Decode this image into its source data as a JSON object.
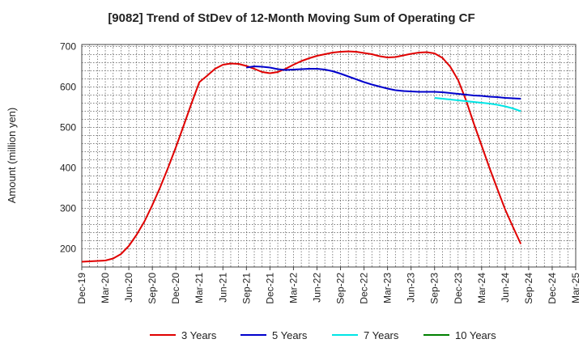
{
  "chart_data": {
    "type": "line",
    "title": "[9082]  Trend of StDev of 12-Month Moving Sum of Operating CF",
    "xlabel": "",
    "ylabel": "Amount (million yen)",
    "ylim": [
      155,
      705
    ],
    "yticks": [
      200,
      300,
      400,
      500,
      600,
      700
    ],
    "grid": true,
    "legend_position": "bottom",
    "x_dates": [
      "Dec-19",
      "Mar-20",
      "Jun-20",
      "Sep-20",
      "Dec-20",
      "Mar-21",
      "Jun-21",
      "Sep-21",
      "Dec-21",
      "Mar-22",
      "Jun-22",
      "Sep-22",
      "Dec-22",
      "Mar-23",
      "Jun-23",
      "Sep-23",
      "Dec-23",
      "Mar-24",
      "Jun-24",
      "Sep-24",
      "Dec-24",
      "Mar-25"
    ],
    "series": [
      {
        "name": "3 Years",
        "color": "#e00000",
        "points": [
          [
            "Dec-19",
            168
          ],
          [
            "Jan-20",
            169
          ],
          [
            "Feb-20",
            170
          ],
          [
            "Mar-20",
            171
          ],
          [
            "Apr-20",
            176
          ],
          [
            "May-20",
            187
          ],
          [
            "Jun-20",
            207
          ],
          [
            "Jul-20",
            235
          ],
          [
            "Aug-20",
            268
          ],
          [
            "Sep-20",
            308
          ],
          [
            "Oct-20",
            352
          ],
          [
            "Nov-20",
            400
          ],
          [
            "Dec-20",
            451
          ],
          [
            "Jan-21",
            505
          ],
          [
            "Feb-21",
            560
          ],
          [
            "Mar-21",
            612
          ],
          [
            "Apr-21",
            628
          ],
          [
            "May-21",
            645
          ],
          [
            "Jun-21",
            655
          ],
          [
            "Jul-21",
            658
          ],
          [
            "Aug-21",
            657
          ],
          [
            "Sep-21",
            652
          ],
          [
            "Oct-21",
            645
          ],
          [
            "Nov-21",
            637
          ],
          [
            "Dec-21",
            634
          ],
          [
            "Jan-22",
            637
          ],
          [
            "Feb-22",
            645
          ],
          [
            "Mar-22",
            655
          ],
          [
            "Apr-22",
            664
          ],
          [
            "May-22",
            671
          ],
          [
            "Jun-22",
            677
          ],
          [
            "Jul-22",
            681
          ],
          [
            "Aug-22",
            685
          ],
          [
            "Sep-22",
            687
          ],
          [
            "Oct-22",
            688
          ],
          [
            "Nov-22",
            687
          ],
          [
            "Dec-22",
            684
          ],
          [
            "Jan-23",
            681
          ],
          [
            "Feb-23",
            676
          ],
          [
            "Mar-23",
            673
          ],
          [
            "Apr-23",
            674
          ],
          [
            "May-23",
            678
          ],
          [
            "Jun-23",
            682
          ],
          [
            "Jul-23",
            685
          ],
          [
            "Aug-23",
            686
          ],
          [
            "Sep-23",
            683
          ],
          [
            "Oct-23",
            672
          ],
          [
            "Nov-23",
            650
          ],
          [
            "Dec-23",
            617
          ],
          [
            "Jan-24",
            568
          ],
          [
            "Feb-24",
            510
          ],
          [
            "Mar-24",
            455
          ],
          [
            "Apr-24",
            400
          ],
          [
            "May-24",
            348
          ],
          [
            "Jun-24",
            297
          ],
          [
            "Jul-24",
            254
          ],
          [
            "Aug-24",
            212
          ]
        ]
      },
      {
        "name": "5 Years",
        "color": "#0000cc",
        "points": [
          [
            "Sep-21",
            648
          ],
          [
            "Oct-21",
            651
          ],
          [
            "Nov-21",
            650
          ],
          [
            "Dec-21",
            648
          ],
          [
            "Jan-22",
            644
          ],
          [
            "Feb-22",
            642
          ],
          [
            "Mar-22",
            643
          ],
          [
            "Apr-22",
            644
          ],
          [
            "May-22",
            645
          ],
          [
            "Jun-22",
            645
          ],
          [
            "Jul-22",
            643
          ],
          [
            "Aug-22",
            639
          ],
          [
            "Sep-22",
            633
          ],
          [
            "Oct-22",
            626
          ],
          [
            "Nov-22",
            619
          ],
          [
            "Dec-22",
            612
          ],
          [
            "Jan-23",
            606
          ],
          [
            "Feb-23",
            601
          ],
          [
            "Mar-23",
            596
          ],
          [
            "Apr-23",
            592
          ],
          [
            "May-23",
            590
          ],
          [
            "Jun-23",
            589
          ],
          [
            "Jul-23",
            588
          ],
          [
            "Aug-23",
            588
          ],
          [
            "Sep-23",
            588
          ],
          [
            "Oct-23",
            587
          ],
          [
            "Nov-23",
            585
          ],
          [
            "Dec-23",
            583
          ],
          [
            "Jan-24",
            581
          ],
          [
            "Feb-24",
            579
          ],
          [
            "Mar-24",
            578
          ],
          [
            "Apr-24",
            576
          ],
          [
            "May-24",
            575
          ],
          [
            "Jun-24",
            573
          ],
          [
            "Jul-24",
            572
          ],
          [
            "Aug-24",
            571
          ]
        ]
      },
      {
        "name": "7 Years",
        "color": "#00e5e5",
        "points": [
          [
            "Sep-23",
            573
          ],
          [
            "Oct-23",
            571
          ],
          [
            "Nov-23",
            569
          ],
          [
            "Dec-23",
            567
          ],
          [
            "Jan-24",
            565
          ],
          [
            "Feb-24",
            563
          ],
          [
            "Mar-24",
            561
          ],
          [
            "Apr-24",
            559
          ],
          [
            "May-24",
            556
          ],
          [
            "Jun-24",
            552
          ],
          [
            "Jul-24",
            547
          ],
          [
            "Aug-24",
            540
          ]
        ]
      },
      {
        "name": "10 Years",
        "color": "#008000",
        "points": []
      }
    ]
  }
}
